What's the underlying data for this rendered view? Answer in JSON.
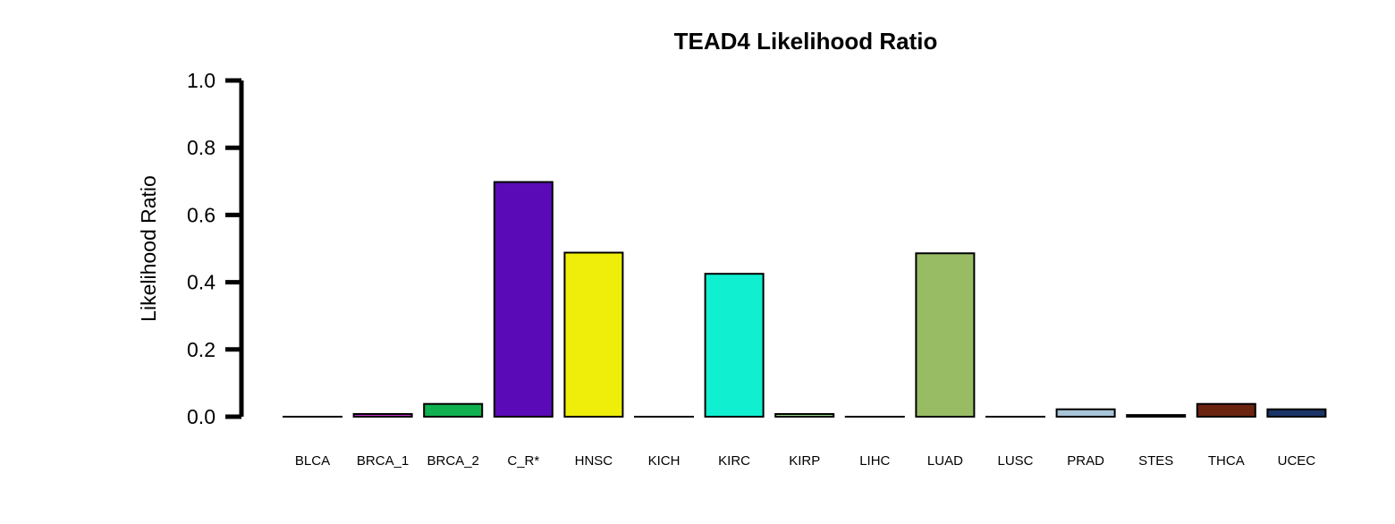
{
  "chart_data": {
    "type": "bar",
    "title": "TEAD4 Likelihood Ratio",
    "xlabel": "",
    "ylabel": "Likelihood Ratio",
    "ylim": [
      0,
      1.0
    ],
    "yticks": [
      "0.0",
      "0.2",
      "0.4",
      "0.6",
      "0.8",
      "1.0"
    ],
    "grid": false,
    "legend": "none",
    "categories": [
      "BLCA",
      "BRCA_1",
      "BRCA_2",
      "C_R*",
      "HNSC",
      "KICH",
      "KIRC",
      "KIRP",
      "LIHC",
      "LUAD",
      "LUSC",
      "PRAD",
      "STES",
      "THCA",
      "UCEC"
    ],
    "values": [
      0.0,
      0.008,
      0.038,
      0.698,
      0.488,
      0.0,
      0.425,
      0.008,
      0.0,
      0.486,
      0.0,
      0.022,
      0.005,
      0.038,
      0.022
    ],
    "colors": [
      "#ffffff",
      "#c034c8",
      "#10b050",
      "#5b0ab8",
      "#eeee0a",
      "#ffffff",
      "#10f0d0",
      "#9ad88c",
      "#ffffff",
      "#98bc64",
      "#ffffff",
      "#a8c4d8",
      "#d8c89c",
      "#6b2410",
      "#1a3466"
    ]
  }
}
